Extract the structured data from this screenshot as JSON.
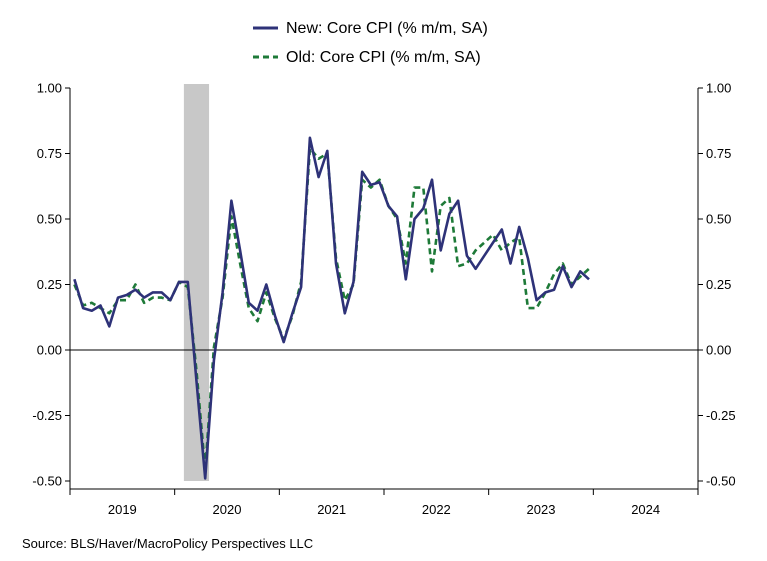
{
  "source": "Source:  BLS/Haver/MacroPolicy Perspectives LLC",
  "chart_data": {
    "type": "line",
    "title": "",
    "xlabel": "",
    "ylabel": "",
    "ylim": [
      -0.5,
      1.0
    ],
    "yticks": [
      "1.00",
      "0.75",
      "0.50",
      "0.25",
      "0.00",
      "-0.25",
      "-0.50"
    ],
    "ytick_values": [
      1.0,
      0.75,
      0.5,
      0.25,
      0.0,
      -0.25,
      -0.5
    ],
    "xlim": [
      "2019-01",
      "2024-12"
    ],
    "year_labels": [
      "2019",
      "2020",
      "2021",
      "2022",
      "2023",
      "2024"
    ],
    "legend_position": "top-center",
    "grid": false,
    "recession_shading": {
      "start": "2020-02",
      "end": "2020-04",
      "color": "#c8c8c8"
    },
    "x": [
      "2019-01",
      "2019-02",
      "2019-03",
      "2019-04",
      "2019-05",
      "2019-06",
      "2019-07",
      "2019-08",
      "2019-09",
      "2019-10",
      "2019-11",
      "2019-12",
      "2020-01",
      "2020-02",
      "2020-03",
      "2020-04",
      "2020-05",
      "2020-06",
      "2020-07",
      "2020-08",
      "2020-09",
      "2020-10",
      "2020-11",
      "2020-12",
      "2021-01",
      "2021-02",
      "2021-03",
      "2021-04",
      "2021-05",
      "2021-06",
      "2021-07",
      "2021-08",
      "2021-09",
      "2021-10",
      "2021-11",
      "2021-12",
      "2022-01",
      "2022-02",
      "2022-03",
      "2022-04",
      "2022-05",
      "2022-06",
      "2022-07",
      "2022-08",
      "2022-09",
      "2022-10",
      "2022-11",
      "2022-12",
      "2023-01",
      "2023-02",
      "2023-03",
      "2023-04",
      "2023-05",
      "2023-06",
      "2023-07",
      "2023-08",
      "2023-09",
      "2023-10",
      "2023-11",
      "2023-12"
    ],
    "series": [
      {
        "name": "New: Core CPI (% m/m, SA)",
        "color": "#2e3278",
        "style": "solid",
        "values": [
          0.27,
          0.16,
          0.15,
          0.17,
          0.09,
          0.2,
          0.21,
          0.23,
          0.2,
          0.22,
          0.22,
          0.19,
          0.26,
          0.26,
          -0.12,
          -0.49,
          -0.04,
          0.22,
          0.57,
          0.38,
          0.18,
          0.15,
          0.25,
          0.13,
          0.03,
          0.14,
          0.24,
          0.81,
          0.66,
          0.76,
          0.33,
          0.14,
          0.26,
          0.68,
          0.63,
          0.64,
          0.55,
          0.51,
          0.27,
          0.5,
          0.54,
          0.65,
          0.38,
          0.52,
          0.57,
          0.36,
          0.31,
          0.36,
          0.41,
          0.46,
          0.33,
          0.47,
          0.35,
          0.19,
          0.22,
          0.23,
          0.32,
          0.24,
          0.3,
          0.27
        ]
      },
      {
        "name": "Old: Core CPI (% m/m, SA)",
        "color": "#1e7a38",
        "style": "dashed",
        "values": [
          0.25,
          0.17,
          0.18,
          0.16,
          0.14,
          0.19,
          0.19,
          0.25,
          0.18,
          0.2,
          0.2,
          0.19,
          0.26,
          0.24,
          -0.08,
          -0.46,
          0.01,
          0.2,
          0.51,
          0.33,
          0.16,
          0.11,
          0.22,
          0.12,
          0.04,
          0.13,
          0.26,
          0.77,
          0.73,
          0.75,
          0.35,
          0.19,
          0.25,
          0.65,
          0.62,
          0.65,
          0.55,
          0.5,
          0.33,
          0.62,
          0.62,
          0.3,
          0.55,
          0.58,
          0.32,
          0.33,
          0.38,
          0.41,
          0.44,
          0.38,
          0.41,
          0.43,
          0.16,
          0.16,
          0.22,
          0.29,
          0.33,
          0.25,
          0.28,
          0.31
        ]
      }
    ]
  }
}
